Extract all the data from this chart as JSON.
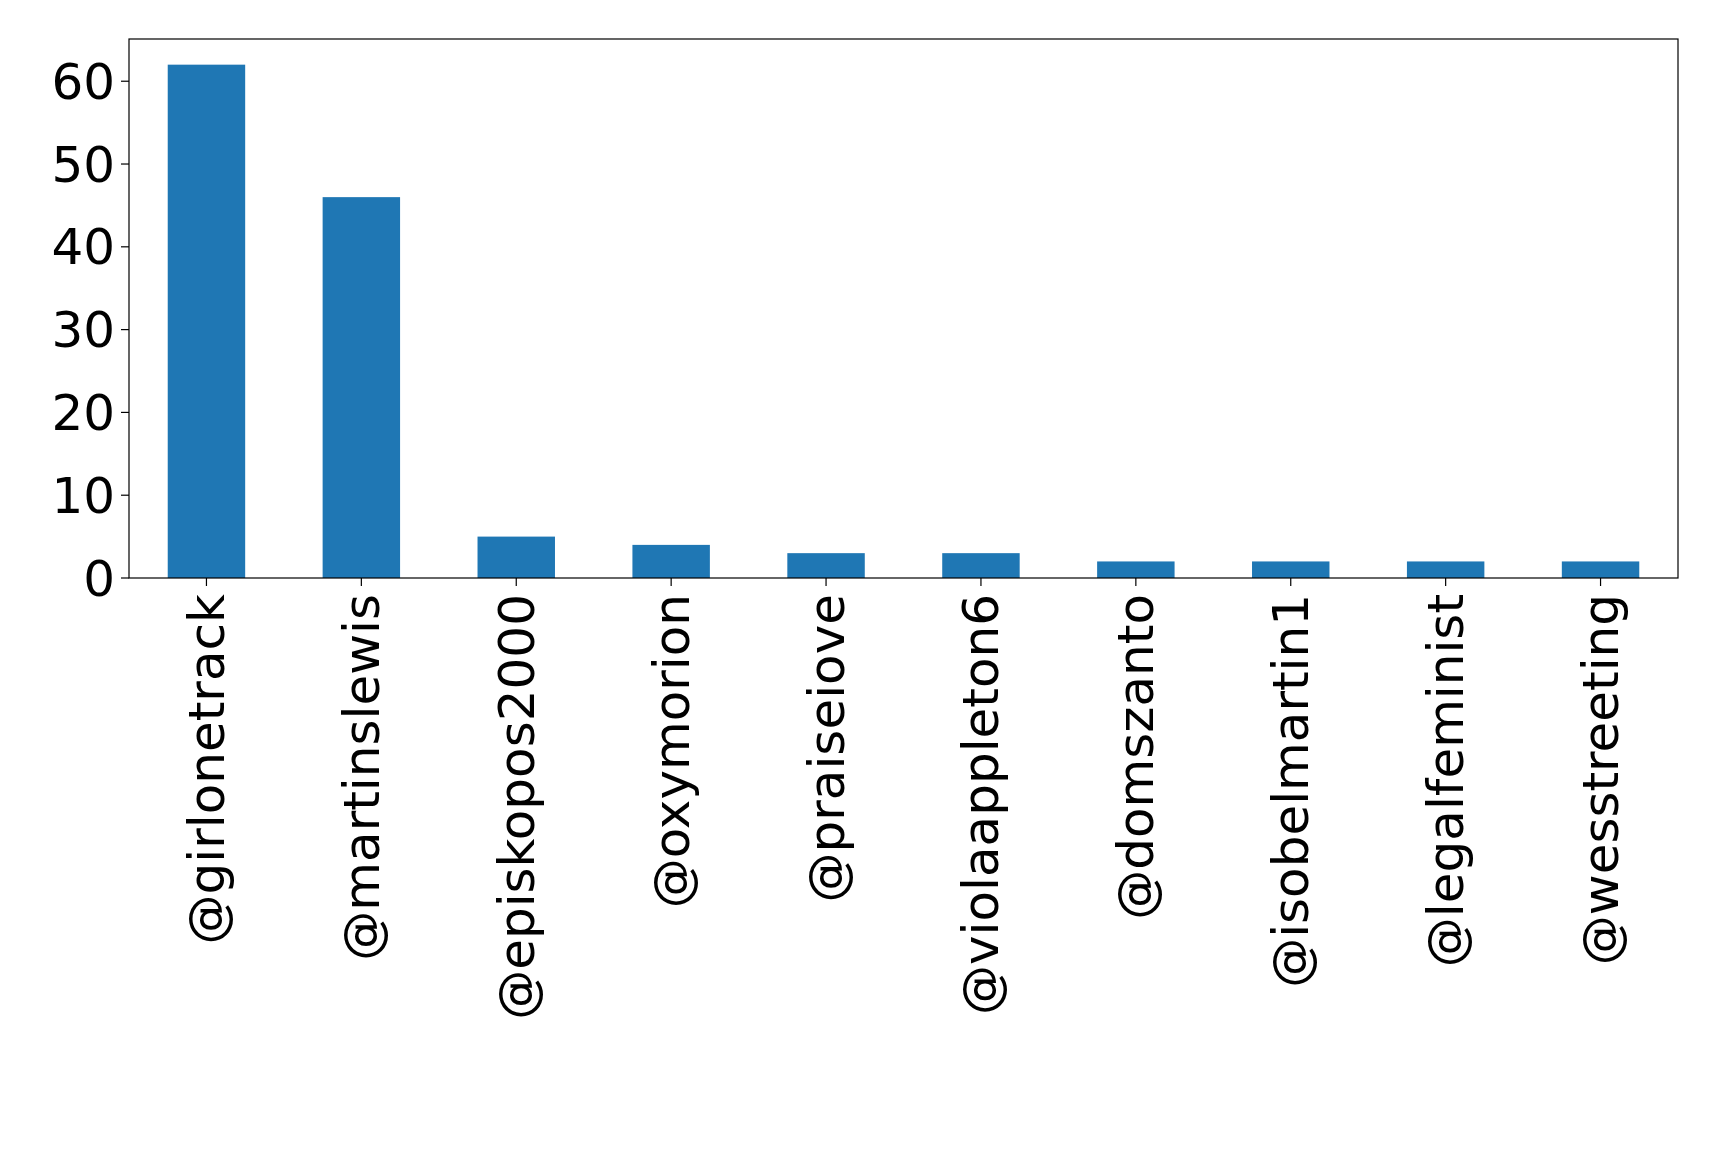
{
  "chart_data": {
    "type": "bar",
    "categories": [
      "@girlonetrack",
      "@martinslewis",
      "@episkopos2000",
      "@oxymorion",
      "@praiseiove",
      "@violaappleton6",
      "@domszanto",
      "@isobelmartin1",
      "@legalfeminist",
      "@wesstreeting"
    ],
    "values": [
      62,
      46,
      5,
      4,
      3,
      3,
      2,
      2,
      2,
      2
    ],
    "color": "#1f77b4",
    "ylim": [
      0,
      65.1
    ],
    "yticks": [
      0,
      10,
      20,
      30,
      40,
      50,
      60
    ],
    "grid": false
  }
}
